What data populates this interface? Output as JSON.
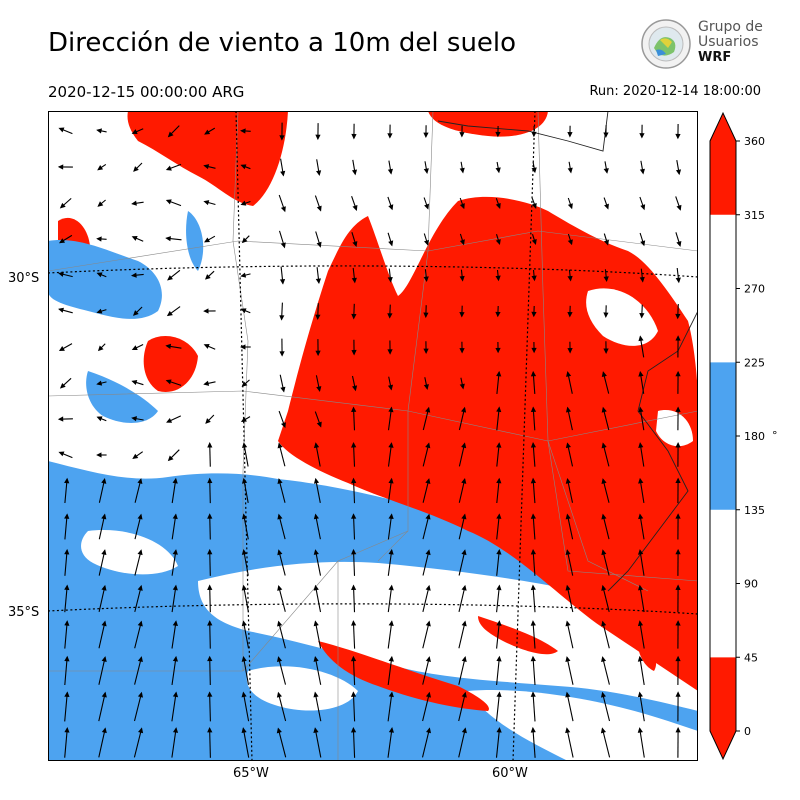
{
  "header": {
    "title": "Dirección de viento a 10m del suelo",
    "valid_time": "2020-12-15 00:00:00 ARG",
    "run": "Run: 2020-12-14 18:00:00"
  },
  "logo": {
    "line1": "Grupo de",
    "line2": "Usuarios",
    "line3": "WRF"
  },
  "map": {
    "lat_labels": [
      "30°S",
      "35°S"
    ],
    "lon_labels": [
      "65°W",
      "60°W"
    ],
    "colors": {
      "red": "#ff1a00",
      "blue": "#4da3f0",
      "white": "#ffffff"
    }
  },
  "colorbar": {
    "ticks": [
      "0",
      "45",
      "90",
      "135",
      "180",
      "225",
      "270",
      "315",
      "360"
    ],
    "unit": "°",
    "bands": [
      {
        "from": 0,
        "to": 45,
        "color": "#ff1a00"
      },
      {
        "from": 45,
        "to": 135,
        "color": "#ffffff"
      },
      {
        "from": 135,
        "to": 225,
        "color": "#4da3f0"
      },
      {
        "from": 225,
        "to": 315,
        "color": "#ffffff"
      },
      {
        "from": 315,
        "to": 360,
        "color": "#ff1a00"
      }
    ]
  }
}
